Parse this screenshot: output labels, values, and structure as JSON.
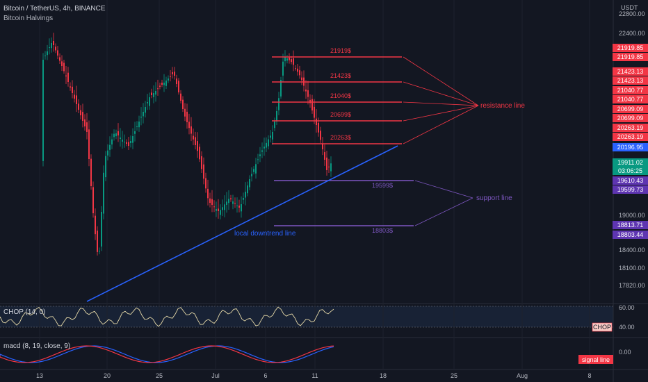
{
  "header": {
    "symbol": "Bitcoin / TetherUS, 4h, BINANCE",
    "indicator": "Bitcoin Halvings",
    "currency": "USDT"
  },
  "chart_data": {
    "type": "candlestick",
    "price_ticks": [
      "22800.00",
      "22400.00",
      "19000.00",
      "18400.00",
      "18100.00",
      "17820.00"
    ],
    "x_ticks": [
      "13",
      "20",
      "25",
      "Jul",
      "6",
      "11",
      "18",
      "25",
      "Aug",
      "8"
    ],
    "resistance_levels": [
      {
        "label": "21919$",
        "value": 21919.85
      },
      {
        "label": "21423$",
        "value": 21423.13
      },
      {
        "label": "21040$",
        "value": 21040.77
      },
      {
        "label": "20699$",
        "value": 20699.09
      },
      {
        "label": "20263$",
        "value": 20263.19
      }
    ],
    "support_levels": [
      {
        "label": "19599$",
        "value": 19599.73
      },
      {
        "label": "18803$",
        "value": 18803.44
      }
    ],
    "annotations": {
      "resistance": "resistance line",
      "support": "support line",
      "trend": "local downtrend line"
    },
    "price_tags": [
      {
        "text": "21919.85",
        "color": "#f23645"
      },
      {
        "text": "21919.85",
        "color": "#f23645"
      },
      {
        "text": "21423.13",
        "color": "#f23645"
      },
      {
        "text": "21423.13",
        "color": "#f23645"
      },
      {
        "text": "21040.77",
        "color": "#f23645"
      },
      {
        "text": "21040.77",
        "color": "#f23645"
      },
      {
        "text": "20699.09",
        "color": "#f23645"
      },
      {
        "text": "20699.09",
        "color": "#f23645"
      },
      {
        "text": "20263.19",
        "color": "#f23645"
      },
      {
        "text": "20263.19",
        "color": "#f23645"
      },
      {
        "text": "20196.95",
        "color": "#2962ff"
      },
      {
        "text": "19911.02",
        "color": "#089981"
      },
      {
        "text": "03:06:25",
        "color": "#089981"
      },
      {
        "text": "19610.43",
        "color": "#5e35b1"
      },
      {
        "text": "19599.73",
        "color": "#5e35b1"
      },
      {
        "text": "18813.71",
        "color": "#5e35b1"
      },
      {
        "text": "18803.44",
        "color": "#5e35b1"
      }
    ],
    "chop": {
      "label": "CHOP (14, 0)",
      "ticks": [
        "60.00",
        "40.00"
      ],
      "tag": "CHOP"
    },
    "macd": {
      "label": "macd (8, 19, close, 9)",
      "tick": "0.00",
      "tag": "signal line"
    },
    "colors": {
      "up": "#089981",
      "down": "#f23645",
      "resistance": "#f23645",
      "support": "#7e57c2",
      "trend": "#2962ff"
    }
  }
}
